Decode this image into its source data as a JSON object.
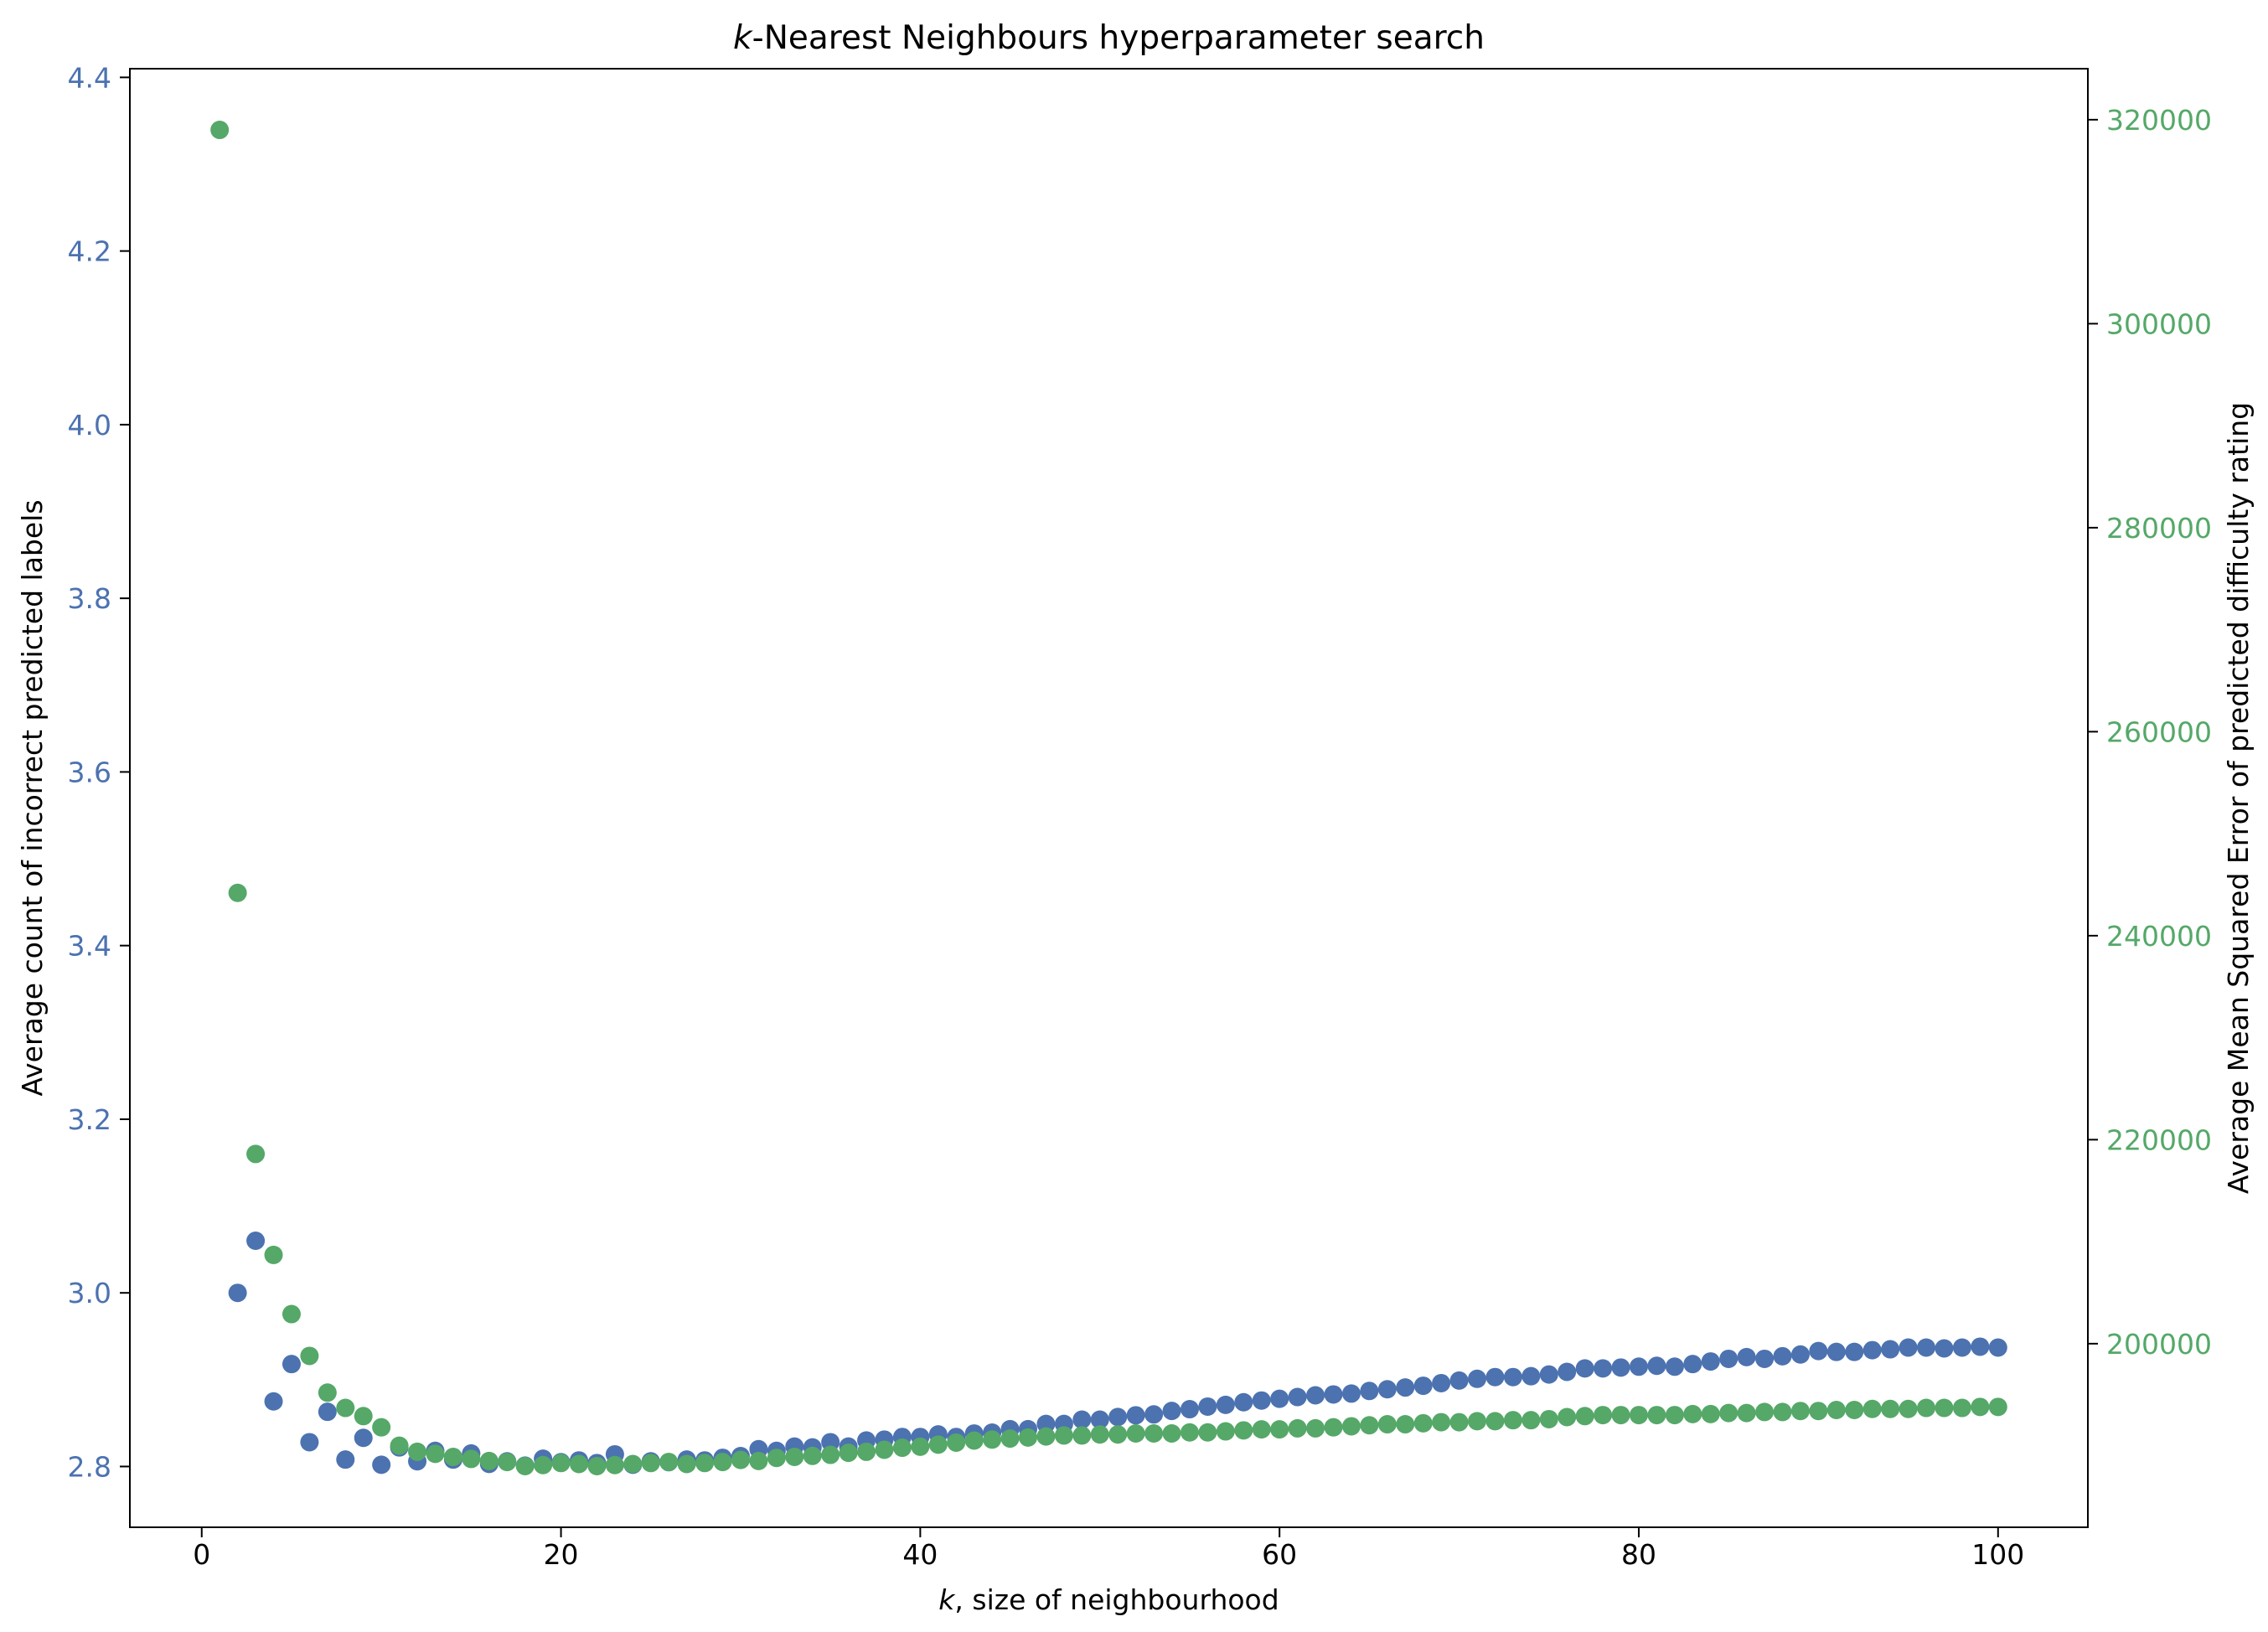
{
  "chart_data": {
    "type": "scatter",
    "title_var": "k",
    "title_rest": "-Nearest Neighbours hyperparameter search",
    "xlabel_var": "k",
    "xlabel_rest": ", size of neighbourhood",
    "ylabel_left": "Average count of incorrect predicted labels",
    "ylabel_right": "Average Mean Squared Error of predicted difficulty rating",
    "xlim": [
      -4,
      105
    ],
    "ylim_left": [
      2.73,
      4.41
    ],
    "ylim_right": [
      182000,
      325000
    ],
    "xticks": [
      0,
      20,
      40,
      60,
      80,
      100
    ],
    "yticks_left": [
      "2.8",
      "3.0",
      "3.2",
      "3.4",
      "3.6",
      "3.8",
      "4.0",
      "4.2",
      "4.4"
    ],
    "yticks_right": [
      "200000",
      "220000",
      "240000",
      "260000",
      "280000",
      "300000",
      "320000"
    ],
    "series": [
      {
        "axis": "left",
        "color": "#4c72b0",
        "x": [
          2,
          3,
          4,
          5,
          6,
          7,
          8,
          9,
          10,
          11,
          12,
          13,
          14,
          15,
          16,
          17,
          18,
          19,
          20,
          21,
          22,
          23,
          24,
          25,
          26,
          27,
          28,
          29,
          30,
          31,
          32,
          33,
          34,
          35,
          36,
          37,
          38,
          39,
          40,
          41,
          42,
          43,
          44,
          45,
          46,
          47,
          48,
          49,
          50,
          51,
          52,
          53,
          54,
          55,
          56,
          57,
          58,
          59,
          60,
          61,
          62,
          63,
          64,
          65,
          66,
          67,
          68,
          69,
          70,
          71,
          72,
          73,
          74,
          75,
          76,
          77,
          78,
          79,
          80,
          81,
          82,
          83,
          84,
          85,
          86,
          87,
          88,
          89,
          90,
          91,
          92,
          93,
          94,
          95,
          96,
          97,
          98,
          99,
          100
        ],
        "y": [
          3.0,
          3.06,
          2.875,
          2.918,
          2.828,
          2.863,
          2.808,
          2.833,
          2.802,
          2.822,
          2.806,
          2.818,
          2.808,
          2.815,
          2.803,
          2.806,
          2.801,
          2.809,
          2.805,
          2.807,
          2.804,
          2.814,
          2.802,
          2.806,
          2.805,
          2.808,
          2.807,
          2.81,
          2.812,
          2.82,
          2.818,
          2.823,
          2.822,
          2.828,
          2.823,
          2.83,
          2.831,
          2.834,
          2.834,
          2.837,
          2.834,
          2.838,
          2.839,
          2.843,
          2.843,
          2.849,
          2.849,
          2.854,
          2.854,
          2.857,
          2.859,
          2.86,
          2.864,
          2.866,
          2.869,
          2.871,
          2.874,
          2.876,
          2.878,
          2.88,
          2.882,
          2.883,
          2.884,
          2.887,
          2.889,
          2.891,
          2.893,
          2.896,
          2.899,
          2.901,
          2.903,
          2.903,
          2.904,
          2.906,
          2.909,
          2.913,
          2.913,
          2.914,
          2.915,
          2.916,
          2.915,
          2.918,
          2.921,
          2.924,
          2.926,
          2.924,
          2.927,
          2.929,
          2.933,
          2.932,
          2.932,
          2.934,
          2.935,
          2.937,
          2.937,
          2.936,
          2.937,
          2.938,
          2.937
        ]
      },
      {
        "axis": "right",
        "color": "#55a868",
        "x": [
          1,
          2,
          3,
          4,
          5,
          6,
          7,
          8,
          9,
          10,
          11,
          12,
          13,
          14,
          15,
          16,
          17,
          18,
          19,
          20,
          21,
          22,
          23,
          24,
          25,
          26,
          27,
          28,
          29,
          30,
          31,
          32,
          33,
          34,
          35,
          36,
          37,
          38,
          39,
          40,
          41,
          42,
          43,
          44,
          45,
          46,
          47,
          48,
          49,
          50,
          51,
          52,
          53,
          54,
          55,
          56,
          57,
          58,
          59,
          60,
          61,
          62,
          63,
          64,
          65,
          66,
          67,
          68,
          69,
          70,
          71,
          72,
          73,
          74,
          75,
          76,
          77,
          78,
          79,
          80,
          81,
          82,
          83,
          84,
          85,
          86,
          87,
          88,
          89,
          90,
          91,
          92,
          93,
          94,
          95,
          96,
          97,
          98,
          99,
          100
        ],
        "y": [
          319000,
          244200,
          218600,
          208700,
          202900,
          198800,
          195200,
          193700,
          192900,
          191800,
          190000,
          189400,
          189200,
          188900,
          188700,
          188500,
          188400,
          188000,
          188100,
          188300,
          188200,
          188000,
          188100,
          188200,
          188300,
          188400,
          188200,
          188300,
          188400,
          188600,
          188500,
          188800,
          188900,
          189000,
          189100,
          189300,
          189400,
          189600,
          189800,
          189900,
          190100,
          190300,
          190500,
          190600,
          190700,
          190800,
          190900,
          191000,
          191000,
          191100,
          191100,
          191200,
          191200,
          191200,
          191300,
          191300,
          191400,
          191500,
          191600,
          191600,
          191700,
          191700,
          191800,
          191900,
          192000,
          192100,
          192100,
          192200,
          192300,
          192300,
          192400,
          192400,
          192500,
          192500,
          192600,
          192800,
          192900,
          193000,
          193000,
          193000,
          193000,
          193000,
          193100,
          193100,
          193200,
          193200,
          193300,
          193300,
          193400,
          193400,
          193500,
          193500,
          193600,
          193600,
          193600,
          193700,
          193700,
          193700,
          193800,
          193800
        ]
      }
    ]
  }
}
